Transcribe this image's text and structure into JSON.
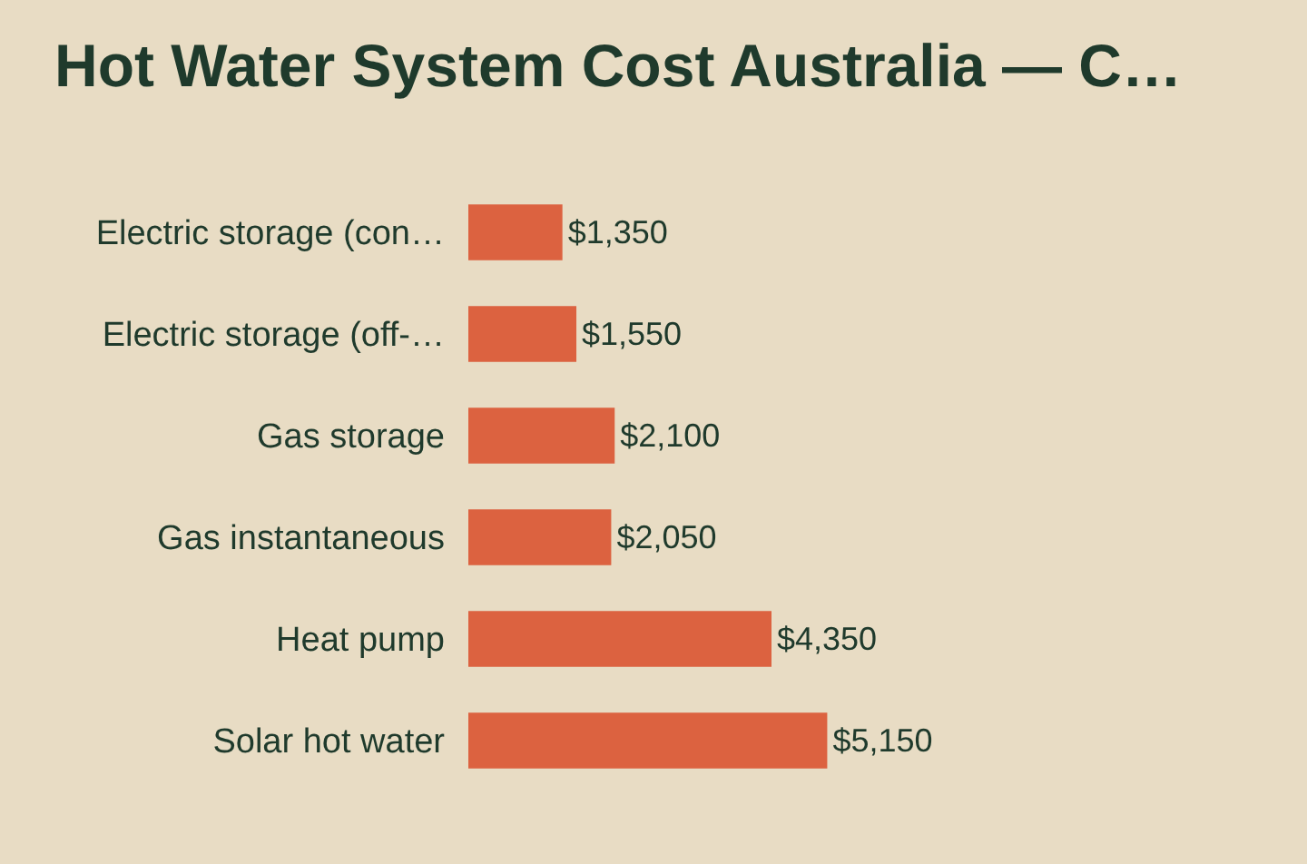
{
  "chart_data": {
    "type": "bar",
    "orientation": "horizontal",
    "title": "Hot Water System Cost Australia — C…",
    "categories": [
      "Electric storage (con…",
      "Electric storage (off-…",
      "Gas storage",
      "Gas instantaneous",
      "Heat pump",
      "Solar hot water"
    ],
    "values": [
      1350,
      1550,
      2100,
      2050,
      4350,
      5150
    ],
    "value_labels": [
      "$1,350",
      "$1,550",
      "$2,100",
      "$2,050",
      "$4,350",
      "$5,150"
    ],
    "color": "#dc6240",
    "grid": false,
    "legend": false,
    "tick_labels": "y"
  }
}
